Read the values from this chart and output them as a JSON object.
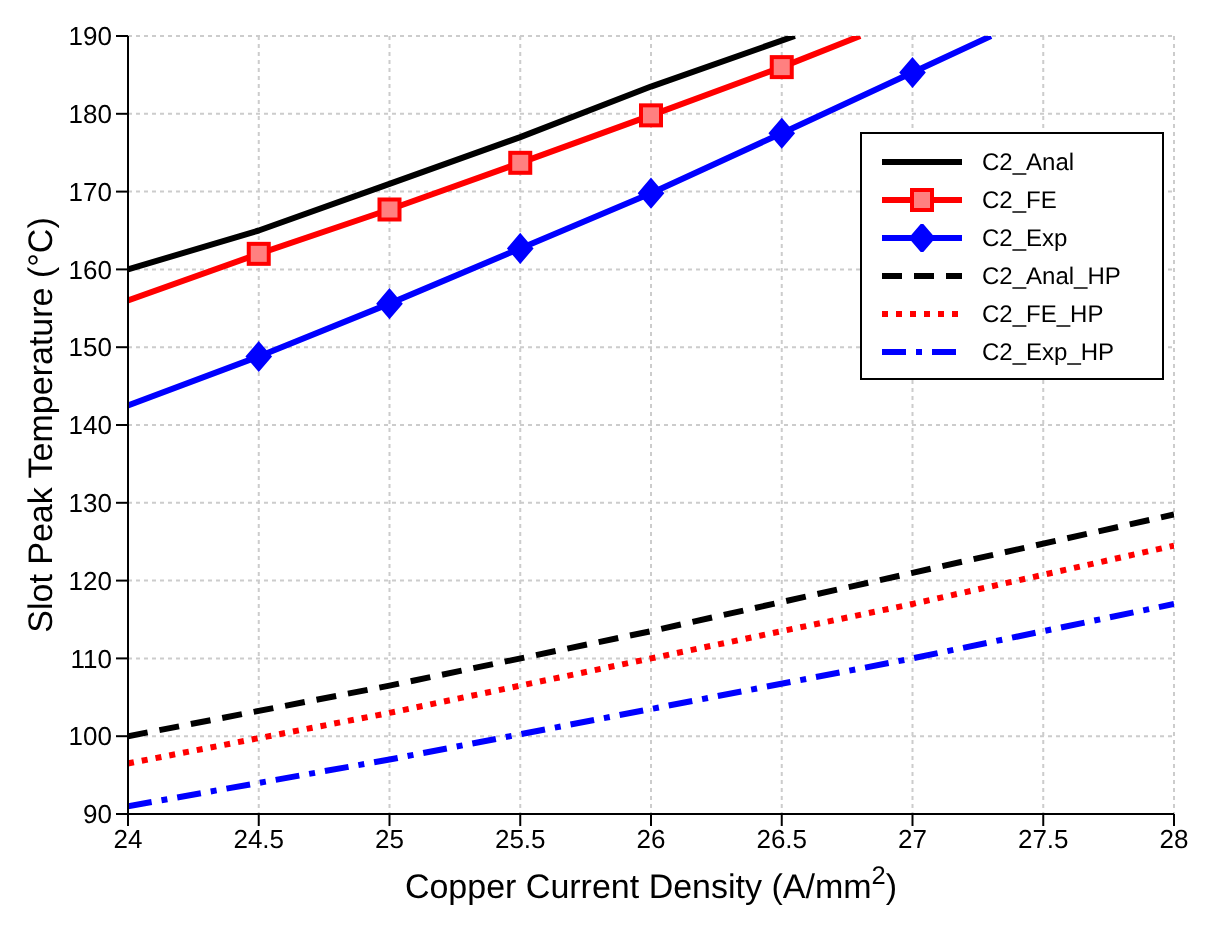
{
  "chart_data": {
    "type": "line",
    "xlabel": "Copper Current Density (A/mm$^{2}$)",
    "ylabel": "Slot Peak Temperature (°C)",
    "xlim": [
      24,
      28
    ],
    "xticks": [
      24,
      24.5,
      25,
      25.5,
      26,
      26.5,
      27,
      27.5,
      28
    ],
    "ylim": [
      90,
      190
    ],
    "yticks": [
      90,
      100,
      110,
      120,
      130,
      140,
      150,
      160,
      170,
      180,
      190
    ],
    "grid": true,
    "legend": "top right",
    "series": [
      {
        "name": "C2_Anal",
        "color": "#000000",
        "line_style": "solid",
        "marker": "none",
        "x": [
          24,
          24.5,
          25,
          25.5,
          26,
          26.55
        ],
        "values": [
          160,
          165,
          171,
          177,
          183.5,
          190
        ]
      },
      {
        "name": "C2_FE",
        "color": "#ff0000",
        "line_style": "solid",
        "marker": "square",
        "x": [
          24,
          24.5,
          25,
          25.5,
          26,
          26.5,
          26.8
        ],
        "values": [
          156,
          162,
          167.7,
          173.7,
          179.8,
          186,
          190
        ]
      },
      {
        "name": "C2_Exp",
        "color": "#0000ff",
        "line_style": "solid",
        "marker": "diamond",
        "x": [
          24,
          24.5,
          25,
          25.5,
          26,
          26.5,
          27,
          27.3
        ],
        "values": [
          142.5,
          148.8,
          155.6,
          162.7,
          169.8,
          177.5,
          185.3,
          190
        ]
      },
      {
        "name": "C2_Anal_HP",
        "color": "#000000",
        "line_style": "dashed",
        "marker": "none",
        "x": [
          24,
          25,
          26,
          27,
          28
        ],
        "values": [
          100,
          106.5,
          113.5,
          121,
          128.5
        ]
      },
      {
        "name": "C2_FE_HP",
        "color": "#ff0000",
        "line_style": "dotted",
        "marker": "none",
        "x": [
          24,
          25,
          26,
          27,
          28
        ],
        "values": [
          96.5,
          103,
          110,
          117,
          124.5
        ]
      },
      {
        "name": "C2_Exp_HP",
        "color": "#0000ff",
        "line_style": "dashdot",
        "marker": "none",
        "x": [
          24,
          25,
          26,
          27,
          28
        ],
        "values": [
          91,
          97,
          103.5,
          110,
          117
        ]
      }
    ]
  }
}
